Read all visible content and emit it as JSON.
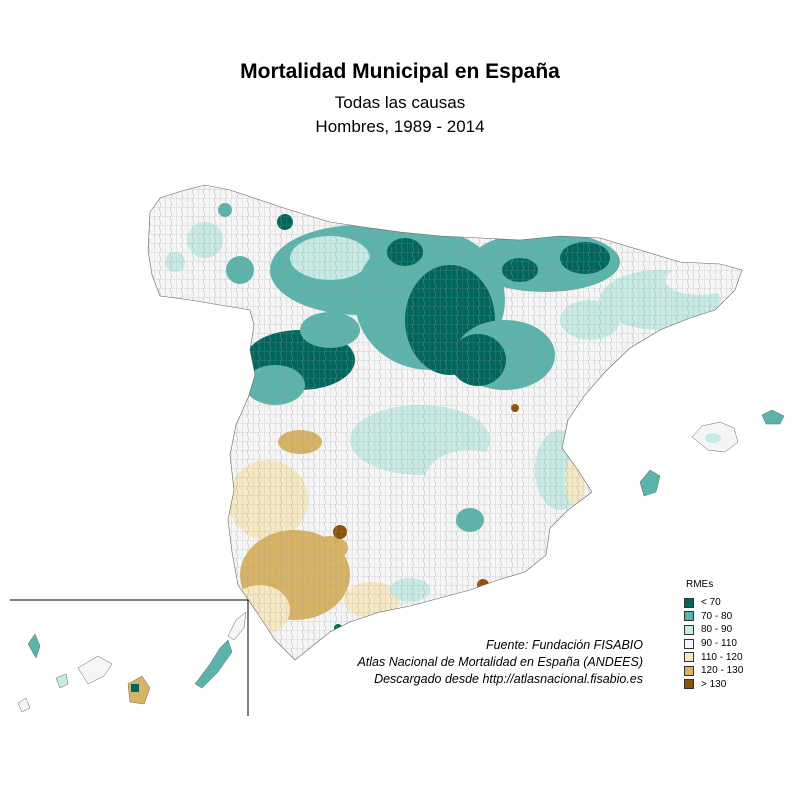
{
  "header": {
    "title": "Mortalidad Municipal en España",
    "subtitle_line1": "Todas las causas",
    "subtitle_line2": "Hombres, 1989 - 2014"
  },
  "credits": [
    "Fuente: Fundación FISABIO",
    "Atlas Nacional de Mortalidad en España (ANDEES)",
    "Descargado desde http://atlasnacional.fisabio.es"
  ],
  "legend": {
    "title": "RMEs",
    "items": [
      {
        "label": "< 70",
        "color": "#01665e"
      },
      {
        "label": "70 - 80",
        "color": "#5ab4ac"
      },
      {
        "label": "80 - 90",
        "color": "#c7eae5"
      },
      {
        "label": "90 - 110",
        "color": "#f5f5f5"
      },
      {
        "label": "110 - 120",
        "color": "#f6e8c3"
      },
      {
        "label": "120 - 130",
        "color": "#d8b365"
      },
      {
        "label": "> 130",
        "color": "#8c510a"
      }
    ]
  }
}
